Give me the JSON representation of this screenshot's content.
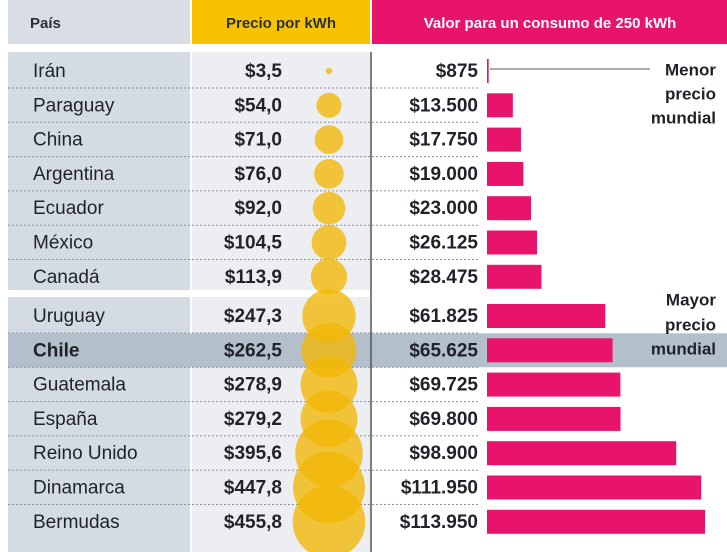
{
  "chart_data": {
    "type": "bubble-bar-table",
    "headers": [
      "País",
      "Precio por kWh",
      "Valor para un consumo de 250 kWh"
    ],
    "categories": [
      "Irán",
      "Paraguay",
      "China",
      "Argentina",
      "Ecuador",
      "México",
      "Canadá",
      "Uruguay",
      "Chile",
      "Guatemala",
      "España",
      "Reino Unido",
      "Dinamarca",
      "Bermudas"
    ],
    "highlight": "Chile",
    "series": [
      {
        "name": "Precio por kWh",
        "color": "#f2b705",
        "values": [
          3.5,
          54.0,
          71.0,
          76.0,
          92.0,
          104.5,
          113.9,
          247.3,
          262.5,
          278.9,
          279.2,
          395.6,
          447.8,
          455.8
        ],
        "value_labels": [
          "$3,5",
          "$54,0",
          "$71,0",
          "$76,0",
          "$92,0",
          "$104,5",
          "$113,9",
          "$247,3",
          "$262,5",
          "$278,9",
          "$279,2",
          "$395,6",
          "$447,8",
          "$455,8"
        ]
      },
      {
        "name": "Valor para un consumo de 250 kWh",
        "color": "#e8136a",
        "values": [
          875,
          13500,
          17750,
          19000,
          23000,
          26125,
          28475,
          61825,
          65625,
          69725,
          69800,
          98900,
          111950,
          113950
        ],
        "value_labels": [
          "$875",
          "$13.500",
          "$17.750",
          "$19.000",
          "$23.000",
          "$26.125",
          "$28.475",
          "$61.825",
          "$65.625",
          "$69.725",
          "$69.800",
          "$98.900",
          "$111.950",
          "$113.950"
        ]
      }
    ],
    "annotations": [
      [
        "Menor",
        "precio",
        "mundial"
      ],
      [
        "Mayor",
        "precio",
        "mundial"
      ]
    ]
  }
}
